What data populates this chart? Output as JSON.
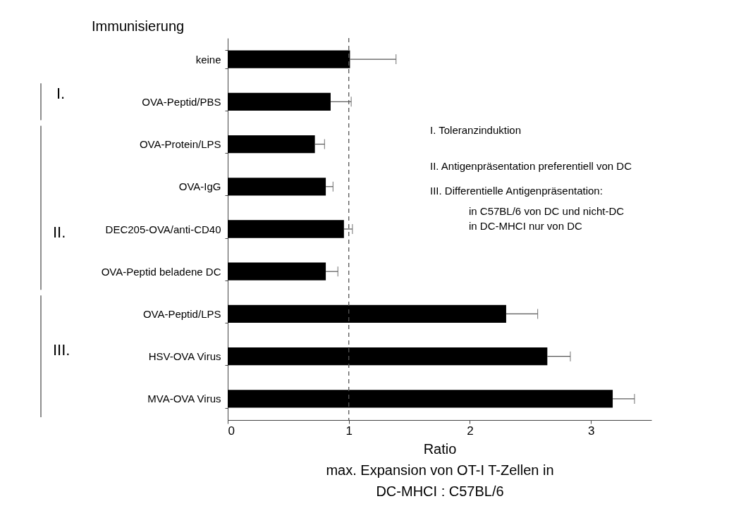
{
  "chart_data": {
    "type": "bar",
    "orientation": "horizontal",
    "ylabel": "Immunisierung",
    "xlabel": "Ratio\nmax. Expansion von OT-I T-Zellen in\nDC-MHCI : C57BL/6",
    "categories": [
      "keine",
      "OVA-Peptid/PBS",
      "OVA-Protein/LPS",
      "OVA-IgG",
      "DEC205-OVA/anti-CD40",
      "OVA-Peptid beladene DC",
      "OVA-Peptid/LPS",
      "HSV-OVA Virus",
      "MVA-OVA Virus"
    ],
    "values": [
      1.01,
      0.85,
      0.72,
      0.81,
      0.96,
      0.81,
      2.3,
      2.64,
      3.18
    ],
    "errors": [
      [
        1.01,
        1.39
      ],
      [
        0.85,
        1.02
      ],
      [
        0.72,
        0.8
      ],
      [
        0.81,
        0.87
      ],
      [
        0.96,
        1.03
      ],
      [
        0.81,
        0.91
      ],
      [
        2.3,
        2.56
      ],
      [
        2.64,
        2.83
      ],
      [
        3.18,
        3.36
      ]
    ],
    "color": "#000000",
    "xlim": [
      0,
      3.5
    ],
    "xticks": [
      0,
      1,
      2,
      3
    ],
    "ref_lines": [
      {
        "axis": "x",
        "value": 1,
        "line_style": "dashed",
        "color": "#555555"
      }
    ],
    "annotations": [
      "I.",
      "II.",
      "III.",
      "I. Toleranzinduktion",
      "II. Antigenpräsentation preferentiell von DC",
      "III. Differentielle Antigenpräsentation:",
      "in C57BL/6 von DC und nicht-DC",
      "in DC-MHCI nur von DC"
    ]
  }
}
